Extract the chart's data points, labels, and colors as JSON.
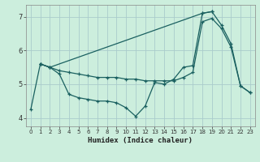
{
  "title": "",
  "xlabel": "Humidex (Indice chaleur)",
  "background_color": "#cceedd",
  "grid_color": "#aacccc",
  "line_color": "#1a6060",
  "xlim": [
    -0.5,
    23.5
  ],
  "ylim": [
    3.75,
    7.35
  ],
  "yticks": [
    4,
    5,
    6,
    7
  ],
  "xticks": [
    0,
    1,
    2,
    3,
    4,
    5,
    6,
    7,
    8,
    9,
    10,
    11,
    12,
    13,
    14,
    15,
    16,
    17,
    18,
    19,
    20,
    21,
    22,
    23
  ],
  "line1_x": [
    0,
    1,
    2,
    3,
    4,
    5,
    6,
    7,
    8,
    9,
    10,
    11,
    12,
    13,
    14,
    15,
    16,
    17,
    18,
    19,
    20,
    21,
    22,
    23
  ],
  "line1_y": [
    4.25,
    5.6,
    5.5,
    5.3,
    4.7,
    4.6,
    4.55,
    4.5,
    4.5,
    4.45,
    4.3,
    4.05,
    4.35,
    5.05,
    5.0,
    5.15,
    5.5,
    5.55,
    7.1,
    7.15,
    6.75,
    6.2,
    4.95,
    4.75
  ],
  "line2_x": [
    1,
    2,
    3,
    4,
    5,
    6,
    7,
    8,
    9,
    10,
    11,
    12,
    13,
    14,
    15,
    16,
    17,
    18,
    19,
    20,
    21,
    22,
    23
  ],
  "line2_y": [
    5.6,
    5.5,
    5.4,
    5.35,
    5.3,
    5.25,
    5.2,
    5.2,
    5.2,
    5.15,
    5.15,
    5.1,
    5.1,
    5.1,
    5.1,
    5.2,
    5.35,
    6.85,
    6.95,
    6.65,
    6.1,
    4.95,
    4.75
  ],
  "line3_x": [
    1,
    2,
    18,
    19
  ],
  "line3_y": [
    5.6,
    5.5,
    7.1,
    7.15
  ]
}
